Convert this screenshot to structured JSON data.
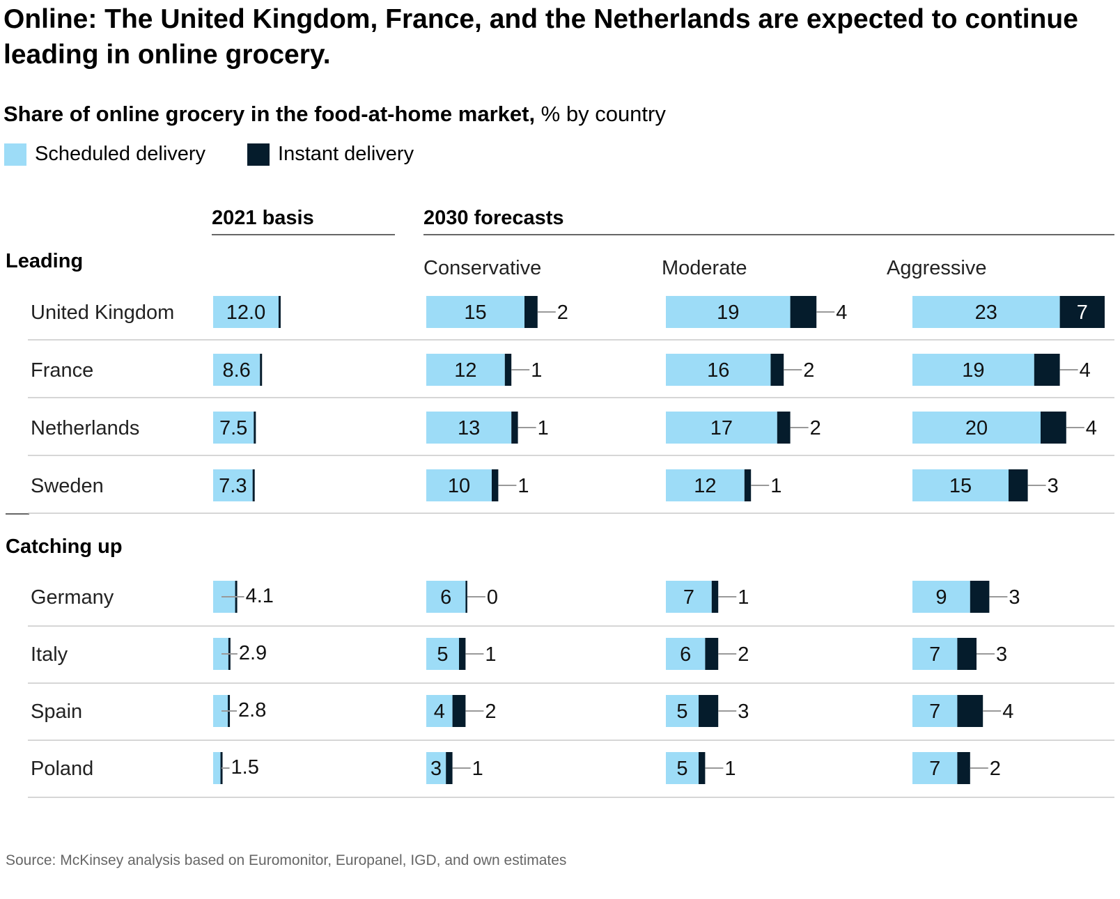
{
  "title": "Online: The United Kingdom, France, and the Netherlands are expected to continue leading in online grocery.",
  "subtitle": {
    "bold": "Share of online grocery in the food-at-home market,",
    "normal": " % by country"
  },
  "source": "Source: McKinsey analysis based on Euromonitor, Europanel, IGD, and own estimates",
  "colors": {
    "scheduled": "#9ddcf7",
    "instant": "#051c2c",
    "rule": "#c8c8c8",
    "connector": "#999999"
  },
  "chart_data": {
    "type": "bar",
    "stacked": true,
    "legend": [
      "Scheduled delivery",
      "Instant delivery"
    ],
    "column_groups": [
      {
        "label": "2021 basis",
        "columns": [
          "2021 basis"
        ]
      },
      {
        "label": "2030 forecasts",
        "columns": [
          "Conservative",
          "Moderate",
          "Aggressive"
        ]
      }
    ],
    "column_labels": [
      "",
      "Conservative",
      "Moderate",
      "Aggressive"
    ],
    "groups": [
      {
        "label": "Leading",
        "countries": [
          {
            "name": "United Kingdom",
            "cells": [
              {
                "total": "12.0",
                "scheduled": 11.6,
                "instant": 0.4
              },
              {
                "scheduled": 15,
                "instant": 2
              },
              {
                "scheduled": 19,
                "instant": 4
              },
              {
                "scheduled": 23,
                "instant": 7
              }
            ]
          },
          {
            "name": "France",
            "cells": [
              {
                "total": "8.6",
                "scheduled": 8.3,
                "instant": 0.3
              },
              {
                "scheduled": 12,
                "instant": 1
              },
              {
                "scheduled": 16,
                "instant": 2
              },
              {
                "scheduled": 19,
                "instant": 4
              }
            ]
          },
          {
            "name": "Netherlands",
            "cells": [
              {
                "total": "7.5",
                "scheduled": 7.2,
                "instant": 0.3
              },
              {
                "scheduled": 13,
                "instant": 1
              },
              {
                "scheduled": 17,
                "instant": 2
              },
              {
                "scheduled": 20,
                "instant": 4
              }
            ]
          },
          {
            "name": "Sweden",
            "cells": [
              {
                "total": "7.3",
                "scheduled": 7.0,
                "instant": 0.3
              },
              {
                "scheduled": 10,
                "instant": 1
              },
              {
                "scheduled": 12,
                "instant": 1
              },
              {
                "scheduled": 15,
                "instant": 3
              }
            ]
          }
        ]
      },
      {
        "label": "Catching up",
        "countries": [
          {
            "name": "Germany",
            "cells": [
              {
                "total": "4.1",
                "scheduled": 3.9,
                "instant": 0.2
              },
              {
                "scheduled": 6,
                "instant": 0
              },
              {
                "scheduled": 7,
                "instant": 1
              },
              {
                "scheduled": 9,
                "instant": 3
              }
            ]
          },
          {
            "name": "Italy",
            "cells": [
              {
                "total": "2.9",
                "scheduled": 2.7,
                "instant": 0.2
              },
              {
                "scheduled": 5,
                "instant": 1
              },
              {
                "scheduled": 6,
                "instant": 2
              },
              {
                "scheduled": 7,
                "instant": 3
              }
            ]
          },
          {
            "name": "Spain",
            "cells": [
              {
                "total": "2.8",
                "scheduled": 2.6,
                "instant": 0.2
              },
              {
                "scheduled": 4,
                "instant": 2
              },
              {
                "scheduled": 5,
                "instant": 3
              },
              {
                "scheduled": 7,
                "instant": 4
              }
            ]
          },
          {
            "name": "Poland",
            "cells": [
              {
                "total": "1.5",
                "scheduled": 1.3,
                "instant": 0.2
              },
              {
                "scheduled": 3,
                "instant": 1
              },
              {
                "scheduled": 5,
                "instant": 1
              },
              {
                "scheduled": 7,
                "instant": 2
              }
            ]
          }
        ]
      }
    ]
  }
}
